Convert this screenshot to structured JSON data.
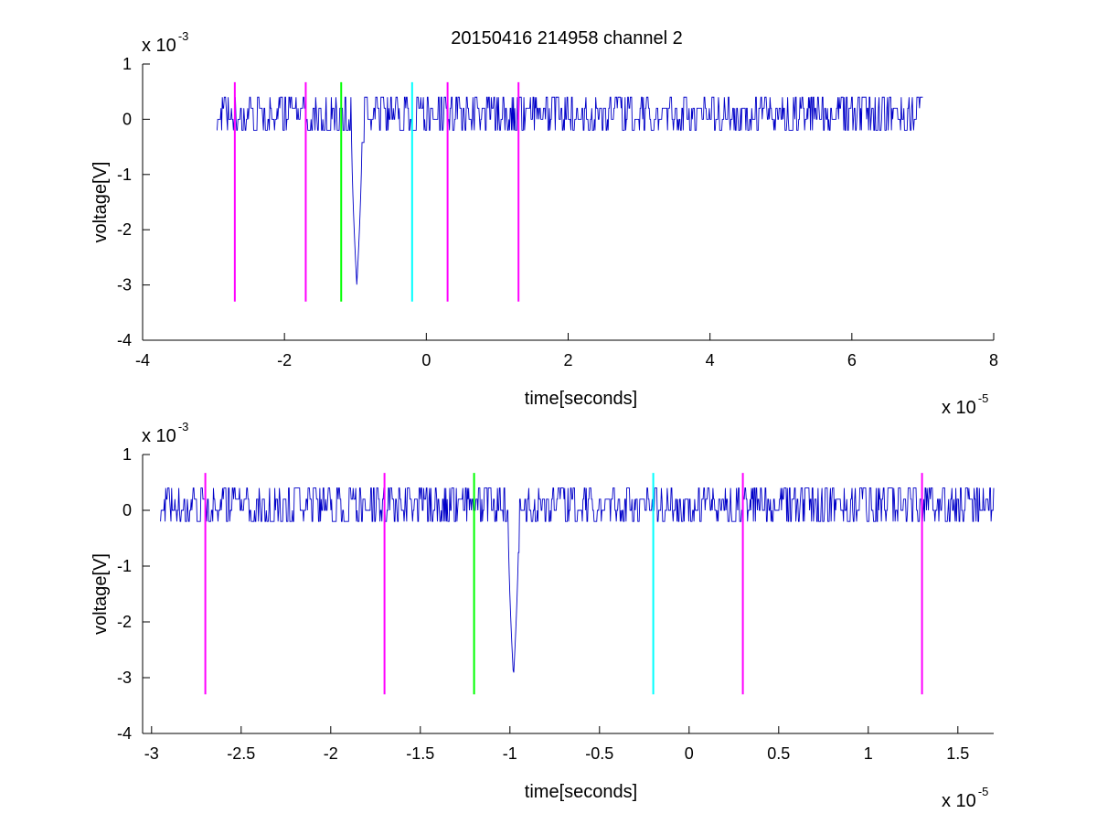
{
  "title": "20150416 214958 channel 2",
  "colors": {
    "signal": "#0000c8",
    "magenta": "#ff00ff",
    "green": "#00ff00",
    "cyan": "#00ffff",
    "axis": "#000000"
  },
  "chart_data": [
    {
      "type": "line",
      "title": "20150416 214958 channel 2",
      "xlabel": "time[seconds]",
      "ylabel": "voltage[V]",
      "x_multiplier": {
        "base": "x 10",
        "exp": "-5"
      },
      "y_multiplier": {
        "base": "x 10",
        "exp": "-3"
      },
      "xlim": [
        -4,
        8
      ],
      "ylim": [
        -4,
        1
      ],
      "xticks": [
        -4,
        -2,
        0,
        2,
        4,
        6,
        8
      ],
      "xtick_labels": [
        "-4",
        "-2",
        "0",
        "2",
        "4",
        "6",
        "8"
      ],
      "yticks": [
        -4,
        -3,
        -2,
        -1,
        0,
        1
      ],
      "ytick_labels": [
        "-4",
        "-3",
        "-2",
        "-1",
        "0",
        "1"
      ],
      "grid": false,
      "series": [
        {
          "kind": "signal",
          "color": "#0000c8",
          "x_range": [
            -2.95,
            7.0
          ],
          "baseline": 0.1,
          "noise_levels": [
            -0.2,
            0,
            0.2,
            0.4
          ],
          "spike": {
            "x": -0.98,
            "min": -3.0
          }
        }
      ],
      "markers": [
        {
          "x": -2.7,
          "color": "#ff00ff",
          "y_range": [
            -3.3,
            0.67
          ]
        },
        {
          "x": -1.7,
          "color": "#ff00ff",
          "y_range": [
            -3.3,
            0.67
          ]
        },
        {
          "x": -1.2,
          "color": "#00ff00",
          "y_range": [
            -3.3,
            0.67
          ]
        },
        {
          "x": -0.2,
          "color": "#00ffff",
          "y_range": [
            -3.3,
            0.67
          ]
        },
        {
          "x": 0.3,
          "color": "#ff00ff",
          "y_range": [
            -3.3,
            0.67
          ]
        },
        {
          "x": 1.3,
          "color": "#ff00ff",
          "y_range": [
            -3.3,
            0.67
          ]
        }
      ]
    },
    {
      "type": "line",
      "xlabel": "time[seconds]",
      "ylabel": "voltage[V]",
      "x_multiplier": {
        "base": "x 10",
        "exp": "-5"
      },
      "y_multiplier": {
        "base": "x 10",
        "exp": "-3"
      },
      "xlim": [
        -3.05,
        1.7
      ],
      "ylim": [
        -4,
        1
      ],
      "xticks": [
        -3,
        -2.5,
        -2,
        -1.5,
        -1,
        -0.5,
        0,
        0.5,
        1,
        1.5
      ],
      "xtick_labels": [
        "-3",
        "-2.5",
        "-2",
        "-1.5",
        "-1",
        "-0.5",
        "0",
        "0.5",
        "1",
        "1.5"
      ],
      "yticks": [
        -4,
        -3,
        -2,
        -1,
        0,
        1
      ],
      "ytick_labels": [
        "-4",
        "-3",
        "-2",
        "-1",
        "0",
        "1"
      ],
      "grid": false,
      "series": [
        {
          "kind": "signal",
          "color": "#0000c8",
          "x_range": [
            -2.95,
            1.7
          ],
          "baseline": 0.1,
          "noise_levels": [
            -0.2,
            0,
            0.2,
            0.4
          ],
          "spike": {
            "x": -0.98,
            "min": -3.0
          }
        }
      ],
      "markers": [
        {
          "x": -2.7,
          "color": "#ff00ff",
          "y_range": [
            -3.3,
            0.67
          ]
        },
        {
          "x": -1.7,
          "color": "#ff00ff",
          "y_range": [
            -3.3,
            0.67
          ]
        },
        {
          "x": -1.2,
          "color": "#00ff00",
          "y_range": [
            -3.3,
            0.67
          ]
        },
        {
          "x": -0.2,
          "color": "#00ffff",
          "y_range": [
            -3.3,
            0.67
          ]
        },
        {
          "x": 0.3,
          "color": "#ff00ff",
          "y_range": [
            -3.3,
            0.67
          ]
        },
        {
          "x": 1.3,
          "color": "#ff00ff",
          "y_range": [
            -3.3,
            0.67
          ]
        }
      ]
    }
  ]
}
